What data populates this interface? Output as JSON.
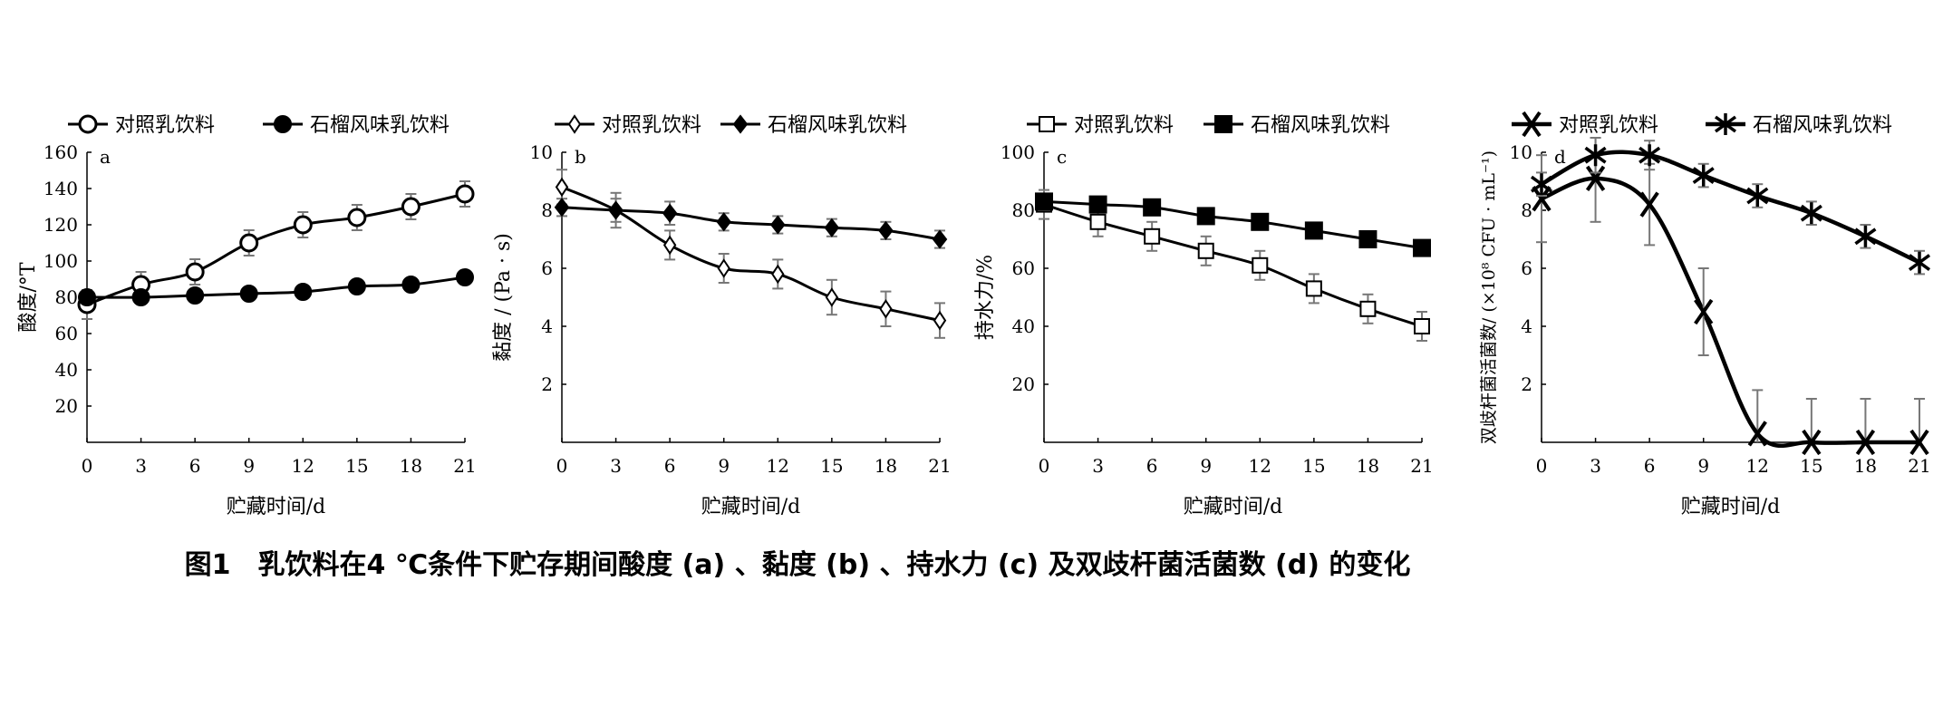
{
  "caption": "图1　乳饮料在4 ℃条件下贮存期间酸度 (a) 、黏度 (b) 、持水力 (c) 及双歧杆菌活菌数 (d) 的变化",
  "chart_data": [
    {
      "type": "line",
      "panel": "a",
      "xlabel": "贮藏时间/d",
      "ylabel": "酸度/°T",
      "x": [
        0,
        3,
        6,
        9,
        12,
        15,
        18,
        21
      ],
      "xticks": [
        "0",
        "3",
        "6",
        "9",
        "12",
        "15",
        "18",
        "21"
      ],
      "ylim": [
        0,
        160
      ],
      "yticks": [
        "20",
        "40",
        "60",
        "80",
        "100",
        "120",
        "140",
        "160"
      ],
      "legend_position": "top",
      "series": [
        {
          "name": "对照乳饮料",
          "marker": "open-circle",
          "values": [
            76,
            87,
            94,
            110,
            120,
            124,
            130,
            137
          ],
          "errors": [
            8,
            7,
            7,
            7,
            7,
            7,
            7,
            7
          ]
        },
        {
          "name": "石榴风味乳饮料",
          "marker": "filled-circle",
          "values": [
            80,
            80,
            81,
            82,
            83,
            86,
            87,
            91
          ],
          "errors": [
            3,
            2,
            2,
            2,
            2,
            2,
            2,
            2
          ]
        }
      ]
    },
    {
      "type": "line",
      "panel": "b",
      "xlabel": "贮藏时间/d",
      "ylabel": "黏度 / (Pa · s)",
      "x": [
        0,
        3,
        6,
        9,
        12,
        15,
        18,
        21
      ],
      "xticks": [
        "0",
        "3",
        "6",
        "9",
        "12",
        "15",
        "18",
        "21"
      ],
      "ylim": [
        0,
        10
      ],
      "yticks": [
        "2",
        "4",
        "6",
        "8",
        "10"
      ],
      "legend_position": "top",
      "series": [
        {
          "name": "对照乳饮料",
          "marker": "open-diamond",
          "values": [
            8.8,
            8.0,
            6.8,
            6.0,
            5.8,
            5.0,
            4.6,
            4.2
          ],
          "errors": [
            0.6,
            0.6,
            0.5,
            0.5,
            0.5,
            0.6,
            0.6,
            0.6
          ]
        },
        {
          "name": "石榴风味乳饮料",
          "marker": "filled-diamond",
          "values": [
            8.1,
            8.0,
            7.9,
            7.6,
            7.5,
            7.4,
            7.3,
            7.0
          ],
          "errors": [
            0.3,
            0.4,
            0.4,
            0.3,
            0.3,
            0.3,
            0.3,
            0.3
          ]
        }
      ]
    },
    {
      "type": "line",
      "panel": "c",
      "xlabel": "贮藏时间/d",
      "ylabel": "持水力/%",
      "x": [
        0,
        3,
        6,
        9,
        12,
        15,
        18,
        21
      ],
      "xticks": [
        "0",
        "3",
        "6",
        "9",
        "12",
        "15",
        "18",
        "21"
      ],
      "ylim": [
        0,
        100
      ],
      "yticks": [
        "20",
        "40",
        "60",
        "80",
        "100"
      ],
      "legend_position": "top",
      "series": [
        {
          "name": "对照乳饮料",
          "marker": "open-square",
          "values": [
            82,
            76,
            71,
            66,
            61,
            53,
            46,
            40
          ],
          "errors": [
            5,
            5,
            5,
            5,
            5,
            5,
            5,
            5
          ]
        },
        {
          "name": "石榴风味乳饮料",
          "marker": "filled-square",
          "values": [
            83,
            82,
            81,
            78,
            76,
            73,
            70,
            67
          ],
          "errors": [
            2,
            2,
            2,
            2,
            2,
            2,
            2,
            2
          ]
        }
      ]
    },
    {
      "type": "line",
      "panel": "d",
      "xlabel": "贮藏时间/d",
      "ylabel": "双歧杆菌活菌数/ (×10⁸ CFU · mL⁻¹)",
      "x": [
        0,
        3,
        6,
        9,
        12,
        15,
        18,
        21
      ],
      "xticks": [
        "0",
        "3",
        "6",
        "9",
        "12",
        "15",
        "18",
        "21"
      ],
      "ylim": [
        0,
        10
      ],
      "yticks": [
        "2",
        "4",
        "6",
        "8",
        "10"
      ],
      "legend_position": "top",
      "series": [
        {
          "name": "对照乳饮料",
          "marker": "x",
          "values": [
            8.4,
            9.1,
            8.2,
            4.5,
            0.3,
            0,
            0,
            0
          ],
          "errors": [
            1.5,
            1.5,
            1.4,
            1.5,
            1.5,
            1.5,
            1.5,
            1.5
          ]
        },
        {
          "name": "石榴风味乳饮料",
          "marker": "star",
          "values": [
            8.9,
            9.9,
            9.9,
            9.2,
            8.5,
            7.9,
            7.1,
            6.2
          ],
          "errors": [
            0.4,
            0.6,
            0.5,
            0.4,
            0.4,
            0.4,
            0.4,
            0.4
          ]
        }
      ]
    }
  ]
}
